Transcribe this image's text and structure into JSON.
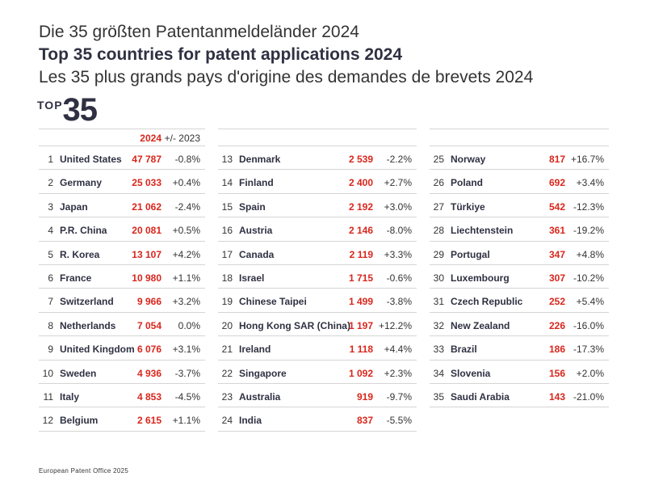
{
  "title_de": "Die 35 größten Patentanmeldeländer 2024",
  "title_en": "Top 35 countries for patent applications 2024",
  "title_fr": "Les 35 plus grands pays d'origine des demandes de brevets 2024",
  "badge": {
    "word": "TOP",
    "number": "35"
  },
  "header": {
    "year": "2024",
    "delta": "+/- 2023"
  },
  "columns": [
    [
      {
        "rank": "1",
        "country": "United States",
        "value": "47 787",
        "delta": "-0.8%"
      },
      {
        "rank": "2",
        "country": "Germany",
        "value": "25 033",
        "delta": "+0.4%"
      },
      {
        "rank": "3",
        "country": "Japan",
        "value": "21 062",
        "delta": "-2.4%"
      },
      {
        "rank": "4",
        "country": "P.R. China",
        "value": "20 081",
        "delta": "+0.5%"
      },
      {
        "rank": "5",
        "country": "R. Korea",
        "value": "13 107",
        "delta": "+4.2%"
      },
      {
        "rank": "6",
        "country": "France",
        "value": "10 980",
        "delta": "+1.1%"
      },
      {
        "rank": "7",
        "country": "Switzerland",
        "value": "9 966",
        "delta": "+3.2%"
      },
      {
        "rank": "8",
        "country": "Netherlands",
        "value": "7 054",
        "delta": "0.0%"
      },
      {
        "rank": "9",
        "country": "United Kingdom",
        "value": "6 076",
        "delta": "+3.1%"
      },
      {
        "rank": "10",
        "country": "Sweden",
        "value": "4 936",
        "delta": "-3.7%"
      },
      {
        "rank": "11",
        "country": "Italy",
        "value": "4 853",
        "delta": "-4.5%"
      },
      {
        "rank": "12",
        "country": "Belgium",
        "value": "2 615",
        "delta": "+1.1%"
      }
    ],
    [
      {
        "rank": "13",
        "country": "Denmark",
        "value": "2 539",
        "delta": "-2.2%"
      },
      {
        "rank": "14",
        "country": "Finland",
        "value": "2 400",
        "delta": "+2.7%"
      },
      {
        "rank": "15",
        "country": "Spain",
        "value": "2 192",
        "delta": "+3.0%"
      },
      {
        "rank": "16",
        "country": "Austria",
        "value": "2 146",
        "delta": "-8.0%"
      },
      {
        "rank": "17",
        "country": "Canada",
        "value": "2 119",
        "delta": "+3.3%"
      },
      {
        "rank": "18",
        "country": "Israel",
        "value": "1 715",
        "delta": "-0.6%"
      },
      {
        "rank": "19",
        "country": "Chinese Taipei",
        "value": "1 499",
        "delta": "-3.8%"
      },
      {
        "rank": "20",
        "country": "Hong Kong SAR (China)",
        "value": "1 197",
        "delta": "+12.2%"
      },
      {
        "rank": "21",
        "country": "Ireland",
        "value": "1 118",
        "delta": "+4.4%"
      },
      {
        "rank": "22",
        "country": "Singapore",
        "value": "1 092",
        "delta": "+2.3%"
      },
      {
        "rank": "23",
        "country": "Australia",
        "value": "919",
        "delta": "-9.7%"
      },
      {
        "rank": "24",
        "country": "India",
        "value": "837",
        "delta": "-5.5%"
      }
    ],
    [
      {
        "rank": "25",
        "country": "Norway",
        "value": "817",
        "delta": "+16.7%"
      },
      {
        "rank": "26",
        "country": "Poland",
        "value": "692",
        "delta": "+3.4%"
      },
      {
        "rank": "27",
        "country": "Türkiye",
        "value": "542",
        "delta": "-12.3%"
      },
      {
        "rank": "28",
        "country": "Liechtenstein",
        "value": "361",
        "delta": "-19.2%"
      },
      {
        "rank": "29",
        "country": "Portugal",
        "value": "347",
        "delta": "+4.8%"
      },
      {
        "rank": "30",
        "country": "Luxembourg",
        "value": "307",
        "delta": "-10.2%"
      },
      {
        "rank": "31",
        "country": "Czech Republic",
        "value": "252",
        "delta": "+5.4%"
      },
      {
        "rank": "32",
        "country": "New Zealand",
        "value": "226",
        "delta": "-16.0%"
      },
      {
        "rank": "33",
        "country": "Brazil",
        "value": "186",
        "delta": "-17.3%"
      },
      {
        "rank": "34",
        "country": "Slovenia",
        "value": "156",
        "delta": "+2.0%"
      },
      {
        "rank": "35",
        "country": "Saudi Arabia",
        "value": "143",
        "delta": "-21.0%"
      }
    ]
  ],
  "footer": "European Patent Office 2025",
  "colors": {
    "accent": "#d9261c",
    "text": "#333333",
    "heading": "#2f3142",
    "rule": "#d5d5d5"
  }
}
